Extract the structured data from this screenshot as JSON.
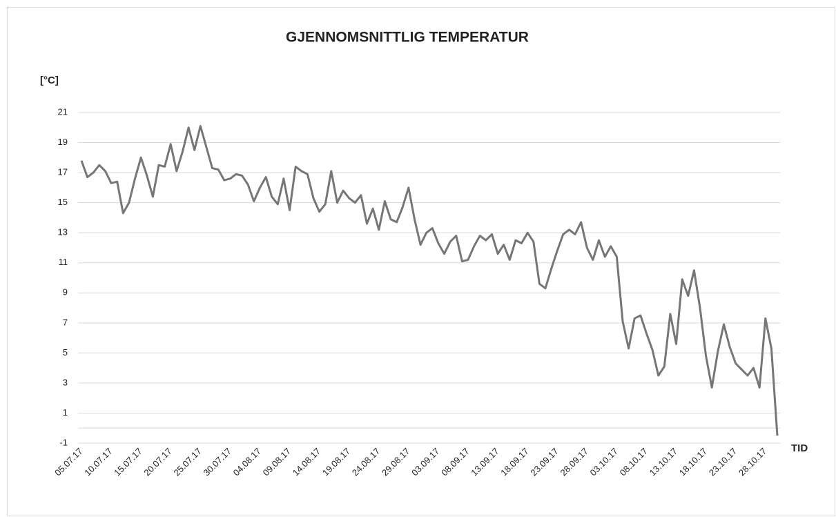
{
  "chart_data": {
    "type": "line",
    "title": "GJENNOMSNITTLIG TEMPERATUR",
    "y_label": "[°C]",
    "x_label": "TID",
    "categories": [
      "05.07.17",
      null,
      null,
      null,
      null,
      "10.07.17",
      null,
      null,
      null,
      null,
      "15.07.17",
      null,
      null,
      null,
      null,
      "20.07.17",
      null,
      null,
      null,
      null,
      "25.07.17",
      null,
      null,
      null,
      null,
      "30.07.17",
      null,
      null,
      null,
      null,
      "04.08.17",
      null,
      null,
      null,
      null,
      "09.08.17",
      null,
      null,
      null,
      null,
      "14.08.17",
      null,
      null,
      null,
      null,
      "19.08.17",
      null,
      null,
      null,
      null,
      "24.08.17",
      null,
      null,
      null,
      null,
      "29.08.17",
      null,
      null,
      null,
      null,
      "03.09.17",
      null,
      null,
      null,
      null,
      "08.09.17",
      null,
      null,
      null,
      null,
      "13.09.17",
      null,
      null,
      null,
      null,
      "18.09.17",
      null,
      null,
      null,
      null,
      "23.09.17",
      null,
      null,
      null,
      null,
      "28.09.17",
      null,
      null,
      null,
      null,
      "03.10.17",
      null,
      null,
      null,
      null,
      "08.10.17",
      null,
      null,
      null,
      null,
      "13.10.17",
      null,
      null,
      null,
      null,
      "18.10.17",
      null,
      null,
      null,
      null,
      "23.10.17",
      null,
      null,
      null,
      null,
      "28.10.17",
      null,
      null
    ],
    "series": [
      {
        "name": "Temperatur",
        "color": "#767676",
        "values": [
          17.8,
          16.7,
          17.0,
          17.5,
          17.1,
          16.3,
          16.4,
          14.3,
          15.0,
          16.6,
          18.0,
          16.8,
          15.4,
          17.5,
          17.4,
          18.9,
          17.1,
          18.4,
          20.0,
          18.5,
          20.1,
          18.7,
          17.3,
          17.2,
          16.5,
          16.6,
          16.9,
          16.8,
          16.2,
          15.1,
          16.0,
          16.7,
          15.4,
          14.9,
          16.6,
          14.5,
          17.4,
          17.1,
          16.9,
          15.3,
          14.4,
          14.9,
          17.1,
          15.0,
          15.8,
          15.3,
          15.0,
          15.5,
          13.6,
          14.6,
          13.2,
          15.1,
          13.9,
          13.7,
          14.7,
          16.0,
          13.9,
          12.2,
          13.0,
          13.3,
          12.3,
          11.6,
          12.4,
          12.8,
          11.1,
          11.2,
          12.1,
          12.8,
          12.5,
          12.9,
          11.6,
          12.2,
          11.2,
          12.5,
          12.3,
          13.0,
          12.4,
          9.6,
          9.3,
          10.6,
          11.8,
          12.9,
          13.2,
          12.9,
          13.7,
          12.0,
          11.2,
          12.5,
          11.4,
          12.1,
          11.4,
          7.1,
          5.3,
          7.3,
          7.5,
          6.3,
          5.2,
          3.5,
          4.1,
          7.6,
          5.6,
          9.9,
          8.8,
          10.5,
          8.0,
          4.8,
          2.7,
          5.1,
          6.9,
          5.4,
          4.3,
          3.9,
          3.5,
          4.0,
          2.7,
          7.3,
          5.3,
          -0.5
        ]
      }
    ],
    "ylim": [
      -1,
      21
    ],
    "yticks": [
      -1,
      1,
      3,
      5,
      7,
      9,
      11,
      13,
      15,
      17,
      19,
      21
    ],
    "grid": true
  }
}
